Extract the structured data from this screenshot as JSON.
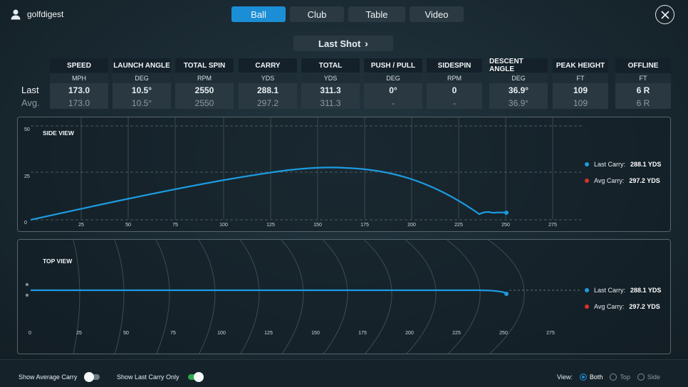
{
  "user": {
    "name": "golfdigest"
  },
  "tabs": [
    {
      "label": "Ball",
      "active": true
    },
    {
      "label": "Club",
      "active": false
    },
    {
      "label": "Table",
      "active": false
    },
    {
      "label": "Video",
      "active": false
    }
  ],
  "shot_selector": {
    "label": "Last Shot",
    "chevron": "›"
  },
  "rows": {
    "last": "Last",
    "avg": "Avg."
  },
  "metrics": [
    {
      "name": "SPEED",
      "unit": "MPH",
      "last": "173.0",
      "avg": "173.0"
    },
    {
      "name": "LAUNCH ANGLE",
      "unit": "DEG",
      "last": "10.5°",
      "avg": "10.5°"
    },
    {
      "name": "TOTAL SPIN",
      "unit": "RPM",
      "last": "2550",
      "avg": "2550"
    },
    {
      "name": "CARRY",
      "unit": "YDS",
      "last": "288.1",
      "avg": "297.2"
    },
    {
      "name": "TOTAL",
      "unit": "YDS",
      "last": "311.3",
      "avg": "311.3"
    },
    {
      "name": "PUSH / PULL",
      "unit": "DEG",
      "last": "0°",
      "avg": "-"
    },
    {
      "name": "SIDESPIN",
      "unit": "RPM",
      "last": "0",
      "avg": "-"
    },
    {
      "name": "DESCENT ANGLE",
      "unit": "DEG",
      "last": "36.9°",
      "avg": "36.9°"
    },
    {
      "name": "PEAK HEIGHT",
      "unit": "FT",
      "last": "109",
      "avg": "109"
    },
    {
      "name": "OFFLINE",
      "unit": "FT",
      "last": "6 R",
      "avg": "6 R"
    }
  ],
  "side_view": {
    "title": "SIDE VIEW",
    "y_ticks": [
      "0",
      "25",
      "50"
    ],
    "x_ticks": [
      "25",
      "50",
      "75",
      "100",
      "125",
      "150",
      "175",
      "200",
      "225",
      "250",
      "275"
    ],
    "legend": [
      {
        "label": "Last Carry:",
        "value": "288.1 YDS",
        "color": "#1c9be0"
      },
      {
        "label": "Avg Carry:",
        "value": "297.2 YDS",
        "color": "#d8312b"
      }
    ]
  },
  "top_view": {
    "title": "TOP VIEW",
    "x_ticks": [
      "0",
      "25",
      "50",
      "75",
      "100",
      "125",
      "150",
      "175",
      "200",
      "225",
      "250",
      "275"
    ],
    "legend": [
      {
        "label": "Last Carry:",
        "value": "288.1 YDS",
        "color": "#1c9be0"
      },
      {
        "label": "Avg Carry:",
        "value": "297.2 YDS",
        "color": "#d8312b"
      }
    ]
  },
  "controls": {
    "show_avg_carry": {
      "label": "Show Average Carry",
      "on": false
    },
    "show_last_carry_only": {
      "label": "Show Last Carry Only",
      "on": true
    },
    "view": {
      "label": "View:",
      "options": [
        "Both",
        "Top",
        "Side"
      ],
      "selected": "Both"
    }
  },
  "colors": {
    "accent": "#1c8ed6",
    "trajectory": "#1c9be0",
    "avg": "#d8312b",
    "toggle_on": "#2fa64a"
  }
}
